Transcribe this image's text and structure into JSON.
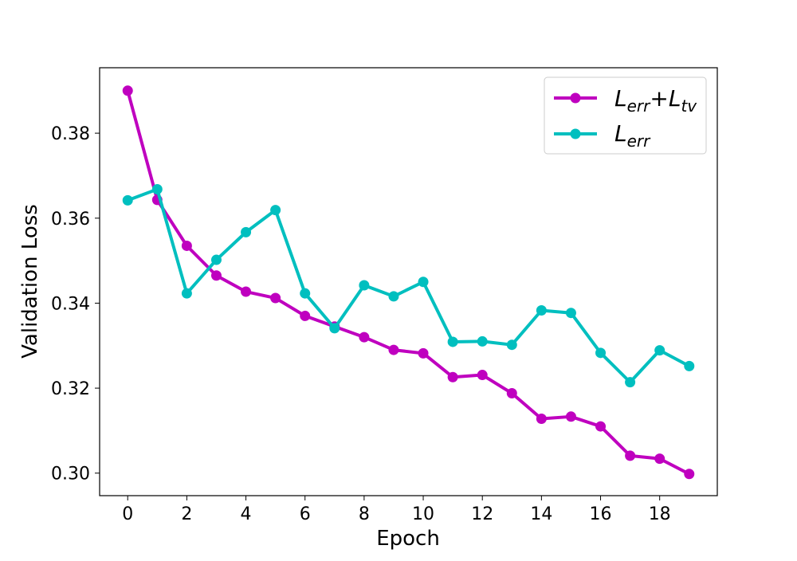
{
  "chart_data": {
    "type": "line",
    "title": "",
    "xlabel": "Epoch",
    "ylabel": "Validation Loss",
    "xlim": [
      -0.95,
      19.95
    ],
    "ylim": [
      0.2947,
      0.3954
    ],
    "xticks": [
      0,
      2,
      4,
      6,
      8,
      10,
      12,
      14,
      16,
      18
    ],
    "yticks": [
      0.3,
      0.32,
      0.34,
      0.36,
      0.38
    ],
    "ytick_labels": [
      "0.30",
      "0.32",
      "0.34",
      "0.36",
      "0.38"
    ],
    "grid": false,
    "legend_position": "top-right",
    "x": [
      0,
      1,
      2,
      3,
      4,
      5,
      6,
      7,
      8,
      9,
      10,
      11,
      12,
      13,
      14,
      15,
      16,
      17,
      18,
      19
    ],
    "series": [
      {
        "key": "lerr_ltv",
        "legend": {
          "a": "L",
          "a_sub": "err",
          "plus": "+",
          "b": "L",
          "b_sub": "tv"
        },
        "color": "#bf00bf",
        "values": [
          0.39,
          0.3643,
          0.3535,
          0.3465,
          0.3427,
          0.3412,
          0.337,
          0.3345,
          0.332,
          0.329,
          0.3282,
          0.3226,
          0.3231,
          0.3188,
          0.3128,
          0.3133,
          0.311,
          0.3041,
          0.3034,
          0.2998
        ]
      },
      {
        "key": "lerr",
        "legend": {
          "a": "L",
          "a_sub": "err"
        },
        "color": "#00bfbf",
        "values": [
          0.3642,
          0.3668,
          0.3423,
          0.3502,
          0.3567,
          0.3619,
          0.3423,
          0.3341,
          0.3442,
          0.3416,
          0.345,
          0.3309,
          0.331,
          0.3302,
          0.3383,
          0.3377,
          0.3283,
          0.3214,
          0.3289,
          0.3252
        ]
      }
    ]
  }
}
